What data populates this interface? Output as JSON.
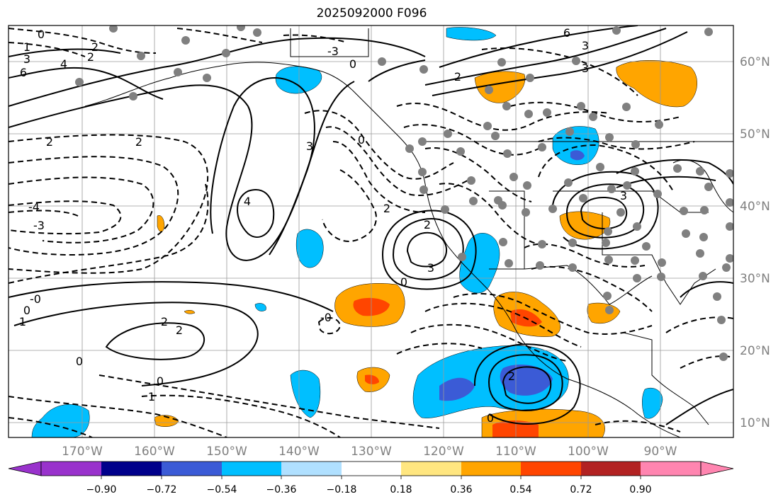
{
  "title": "2025092000 F096",
  "map": {
    "projection": "equirectangular",
    "region": "Eastern North Pacific / North America",
    "lon_range": [
      -180,
      -80
    ],
    "lat_range": [
      8,
      65
    ],
    "gridlines": true,
    "longitude_labels": [
      "170°W",
      "160°W",
      "150°W",
      "140°W",
      "130°W",
      "120°W",
      "110°W",
      "100°W",
      "90°W"
    ],
    "latitude_labels": [
      "60°N",
      "50°N",
      "40°N",
      "30°N",
      "20°N",
      "10°N"
    ],
    "contour_labels": [
      "0",
      "2",
      "1",
      "3",
      "4",
      "6",
      "2",
      "2",
      "2",
      "-4",
      "-3",
      "4",
      "3",
      "0",
      "2",
      "-0",
      "0",
      "1",
      "2",
      "2",
      "0",
      "0",
      "-0",
      "3",
      "0",
      "2",
      "-3",
      "3",
      "3",
      "6",
      "3",
      "2",
      "0",
      "2",
      "1",
      "0"
    ],
    "features": [
      "contours (solid positive, dashed negative)",
      "shaded anomaly field",
      "gray station dots"
    ]
  },
  "colorbar": {
    "tick_labels": [
      "−0.90",
      "−0.72",
      "−0.54",
      "−0.36",
      "−0.18",
      "0.18",
      "0.36",
      "0.54",
      "0.72",
      "0.90"
    ],
    "colors": [
      "#9932cc",
      "#00008b",
      "#3b5bd6",
      "#00bfff",
      "#b0e0ff",
      "#ffffff",
      "#ffe680",
      "#ffa500",
      "#ff4500",
      "#b22222",
      "#ff85b0"
    ]
  }
}
